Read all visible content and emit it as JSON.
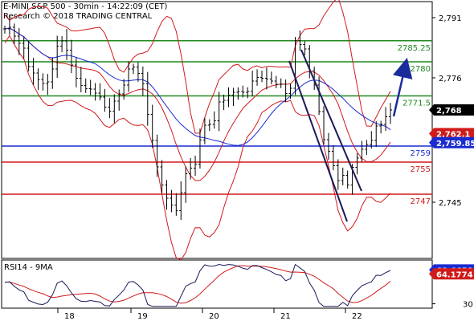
{
  "chart_data": {
    "type": "line",
    "title": "E-MINI S&P 500 - 30min - 14:22:09 (CET)",
    "subtitle": "Research © 2018 TRADING CENTRAL",
    "x_labels": [
      "18",
      "19",
      "20",
      "21",
      "22"
    ],
    "price_ticks": [
      "2,791",
      "2,776",
      "2,760",
      "2,745"
    ],
    "ylim": [
      2731,
      2795
    ],
    "support_resistance": [
      {
        "label": "2785.25",
        "value": 2785.25,
        "color": "#1f8a1f"
      },
      {
        "label": "2780",
        "value": 2780,
        "color": "#1f8a1f"
      },
      {
        "label": "2771.5",
        "value": 2771.5,
        "color": "#1f8a1f"
      },
      {
        "label": "2759",
        "value": 2759,
        "color": "#1a2bd1"
      },
      {
        "label": "2755",
        "value": 2755,
        "color": "#d11a1a"
      },
      {
        "label": "2747",
        "value": 2747,
        "color": "#d11a1a"
      }
    ],
    "price_badges": [
      {
        "label": "2,768",
        "value": 2768,
        "bg": "#000000",
        "fg": "#ffffff"
      },
      {
        "label": "2,762.1",
        "value": 2762.1,
        "bg": "#d11a1a",
        "fg": "#ffffff"
      },
      {
        "label": "2,759.85",
        "value": 2759.85,
        "bg": "#1a2bd1",
        "fg": "#ffffff"
      }
    ],
    "price_series": [
      2788.2,
      2788.6,
      2786.4,
      2784.6,
      2783.4,
      2778.8,
      2777.2,
      2775.6,
      2774.6,
      2775.0,
      2778.2,
      2783.9,
      2785.2,
      2782.9,
      2779.2,
      2775.9,
      2774.1,
      2773.3,
      2773.2,
      2772.2,
      2771.2,
      2768.7,
      2767.7,
      2770.2,
      2772.0,
      2774.2,
      2778.2,
      2778.7,
      2777.1,
      2774.5,
      2766.9,
      2760.4,
      2753.8,
      2749.3,
      2746.0,
      2744.3,
      2742.9,
      2747.4,
      2752.1,
      2753.5,
      2754.5,
      2760.5,
      2764.2,
      2764.4,
      2765.3,
      2770.0,
      2770.4,
      2771.7,
      2772.4,
      2772.6,
      2772.4,
      2772.6,
      2775.2,
      2776.1,
      2775.9,
      2775.7,
      2775.2,
      2774.4,
      2774.4,
      2772.1,
      2773.4,
      2785.2,
      2784.3,
      2783.2,
      2777.8,
      2774.2,
      2767.6,
      2760.6,
      2757.7,
      2754.1,
      2750.4,
      2751.7,
      2749.3,
      2753.7,
      2756.0,
      2758.2,
      2759.4,
      2760.4,
      2764.0,
      2764.4,
      2766.3,
      2768.0
    ],
    "rsi": {
      "label": "RSI14 - 9MA",
      "ticks": [
        "30"
      ],
      "ylim": [
        25,
        80
      ],
      "badges": [
        {
          "label": "68.6658",
          "value": 68.6658,
          "bg": "#1a2bd1",
          "fg": "#ffffff"
        },
        {
          "label": "64.1774",
          "value": 64.1774,
          "bg": "#d11a1a",
          "fg": "#ffffff"
        }
      ]
    },
    "annotations": {
      "trend_channel": true,
      "target_arrow": "2780"
    }
  }
}
